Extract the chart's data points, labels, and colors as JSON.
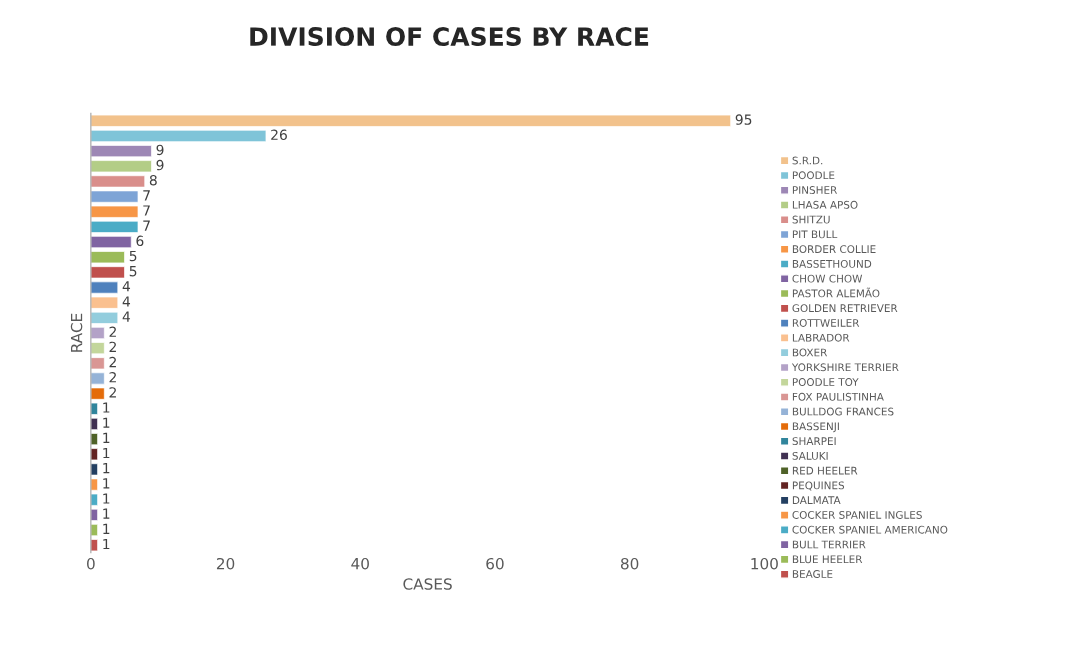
{
  "chart_data": {
    "type": "bar",
    "orientation": "horizontal",
    "title": "DIVISION OF CASES BY RACE",
    "xlabel": "CASES",
    "ylabel": "RACE",
    "categories": [
      null,
      null,
      null,
      null,
      null,
      null,
      null,
      null,
      null,
      null,
      null,
      null,
      null,
      null,
      null,
      null,
      null,
      null,
      null,
      null,
      null,
      null,
      null,
      null,
      null,
      null,
      null,
      null,
      null
    ],
    "series": [
      {
        "name": "S.R.D.",
        "color": "#f2c28c",
        "values": [
          95,
          null,
          null,
          null,
          null,
          null,
          null,
          null,
          null,
          null,
          null,
          null,
          null,
          null,
          null,
          null,
          null,
          null,
          null,
          null,
          null,
          null,
          null,
          null,
          null,
          null,
          null,
          null,
          null
        ]
      },
      {
        "name": "POODLE",
        "color": "#7fc4d8",
        "values": [
          null,
          26,
          null,
          null,
          null,
          null,
          null,
          null,
          null,
          null,
          null,
          null,
          null,
          null,
          null,
          null,
          null,
          null,
          null,
          null,
          null,
          null,
          null,
          null,
          null,
          null,
          null,
          null,
          null
        ]
      },
      {
        "name": "PINSHER",
        "color": "#9d87b5",
        "values": [
          null,
          null,
          9,
          null,
          null,
          null,
          null,
          null,
          null,
          null,
          null,
          null,
          null,
          null,
          null,
          null,
          null,
          null,
          null,
          null,
          null,
          null,
          null,
          null,
          null,
          null,
          null,
          null,
          null
        ]
      },
      {
        "name": "LHASA APSO",
        "color": "#b3cd87",
        "values": [
          null,
          null,
          null,
          9,
          null,
          null,
          null,
          null,
          null,
          null,
          null,
          null,
          null,
          null,
          null,
          null,
          null,
          null,
          null,
          null,
          null,
          null,
          null,
          null,
          null,
          null,
          null,
          null,
          null
        ]
      },
      {
        "name": "SHITZU",
        "color": "#d98e8b",
        "values": [
          null,
          null,
          null,
          null,
          8,
          null,
          null,
          null,
          null,
          null,
          null,
          null,
          null,
          null,
          null,
          null,
          null,
          null,
          null,
          null,
          null,
          null,
          null,
          null,
          null,
          null,
          null,
          null,
          null
        ]
      },
      {
        "name": "PIT BULL",
        "color": "#7ea4d6",
        "values": [
          null,
          null,
          null,
          null,
          null,
          7,
          null,
          null,
          null,
          null,
          null,
          null,
          null,
          null,
          null,
          null,
          null,
          null,
          null,
          null,
          null,
          null,
          null,
          null,
          null,
          null,
          null,
          null,
          null
        ]
      },
      {
        "name": "BORDER COLLIE",
        "color": "#f79646",
        "values": [
          null,
          null,
          null,
          null,
          null,
          null,
          7,
          null,
          null,
          null,
          null,
          null,
          null,
          null,
          null,
          null,
          null,
          null,
          null,
          null,
          null,
          null,
          null,
          null,
          null,
          null,
          null,
          null,
          null
        ]
      },
      {
        "name": "BASSETHOUND",
        "color": "#4bacc6",
        "values": [
          null,
          null,
          null,
          null,
          null,
          null,
          null,
          7,
          null,
          null,
          null,
          null,
          null,
          null,
          null,
          null,
          null,
          null,
          null,
          null,
          null,
          null,
          null,
          null,
          null,
          null,
          null,
          null,
          null
        ]
      },
      {
        "name": "CHOW CHOW",
        "color": "#8064a2",
        "values": [
          null,
          null,
          null,
          null,
          null,
          null,
          null,
          null,
          6,
          null,
          null,
          null,
          null,
          null,
          null,
          null,
          null,
          null,
          null,
          null,
          null,
          null,
          null,
          null,
          null,
          null,
          null,
          null,
          null
        ]
      },
      {
        "name": "PASTOR ALEMÃO",
        "color": "#9bbb59",
        "values": [
          null,
          null,
          null,
          null,
          null,
          null,
          null,
          null,
          null,
          5,
          null,
          null,
          null,
          null,
          null,
          null,
          null,
          null,
          null,
          null,
          null,
          null,
          null,
          null,
          null,
          null,
          null,
          null,
          null
        ]
      },
      {
        "name": "GOLDEN RETRIEVER",
        "color": "#c0504d",
        "values": [
          null,
          null,
          null,
          null,
          null,
          null,
          null,
          null,
          null,
          null,
          5,
          null,
          null,
          null,
          null,
          null,
          null,
          null,
          null,
          null,
          null,
          null,
          null,
          null,
          null,
          null,
          null,
          null,
          null
        ]
      },
      {
        "name": "ROTTWEILER",
        "color": "#4f81bd",
        "values": [
          null,
          null,
          null,
          null,
          null,
          null,
          null,
          null,
          null,
          null,
          null,
          4,
          null,
          null,
          null,
          null,
          null,
          null,
          null,
          null,
          null,
          null,
          null,
          null,
          null,
          null,
          null,
          null,
          null
        ]
      },
      {
        "name": "LABRADOR",
        "color": "#fac08f",
        "values": [
          null,
          null,
          null,
          null,
          null,
          null,
          null,
          null,
          null,
          null,
          null,
          null,
          4,
          null,
          null,
          null,
          null,
          null,
          null,
          null,
          null,
          null,
          null,
          null,
          null,
          null,
          null,
          null,
          null
        ]
      },
      {
        "name": "BOXER",
        "color": "#93cddd",
        "values": [
          null,
          null,
          null,
          null,
          null,
          null,
          null,
          null,
          null,
          null,
          null,
          null,
          null,
          4,
          null,
          null,
          null,
          null,
          null,
          null,
          null,
          null,
          null,
          null,
          null,
          null,
          null,
          null,
          null
        ]
      },
      {
        "name": "YORKSHIRE TERRIER",
        "color": "#b3a2c7",
        "values": [
          null,
          null,
          null,
          null,
          null,
          null,
          null,
          null,
          null,
          null,
          null,
          null,
          null,
          null,
          2,
          null,
          null,
          null,
          null,
          null,
          null,
          null,
          null,
          null,
          null,
          null,
          null,
          null,
          null
        ]
      },
      {
        "name": "POODLE TOY",
        "color": "#c3d69b",
        "values": [
          null,
          null,
          null,
          null,
          null,
          null,
          null,
          null,
          null,
          null,
          null,
          null,
          null,
          null,
          null,
          2,
          null,
          null,
          null,
          null,
          null,
          null,
          null,
          null,
          null,
          null,
          null,
          null,
          null
        ]
      },
      {
        "name": "FOX PAULISTINHA",
        "color": "#d99694",
        "values": [
          null,
          null,
          null,
          null,
          null,
          null,
          null,
          null,
          null,
          null,
          null,
          null,
          null,
          null,
          null,
          null,
          2,
          null,
          null,
          null,
          null,
          null,
          null,
          null,
          null,
          null,
          null,
          null,
          null
        ]
      },
      {
        "name": "BULLDOG FRANCES",
        "color": "#95b3d7",
        "values": [
          null,
          null,
          null,
          null,
          null,
          null,
          null,
          null,
          null,
          null,
          null,
          null,
          null,
          null,
          null,
          null,
          null,
          2,
          null,
          null,
          null,
          null,
          null,
          null,
          null,
          null,
          null,
          null,
          null
        ]
      },
      {
        "name": "BASSENJI",
        "color": "#e46c0a",
        "values": [
          null,
          null,
          null,
          null,
          null,
          null,
          null,
          null,
          null,
          null,
          null,
          null,
          null,
          null,
          null,
          null,
          null,
          null,
          2,
          null,
          null,
          null,
          null,
          null,
          null,
          null,
          null,
          null,
          null
        ]
      },
      {
        "name": "SHARPEI",
        "color": "#31859c",
        "values": [
          null,
          null,
          null,
          null,
          null,
          null,
          null,
          null,
          null,
          null,
          null,
          null,
          null,
          null,
          null,
          null,
          null,
          null,
          null,
          1,
          null,
          null,
          null,
          null,
          null,
          null,
          null,
          null,
          null
        ]
      },
      {
        "name": "SALUKI",
        "color": "#403152",
        "values": [
          null,
          null,
          null,
          null,
          null,
          null,
          null,
          null,
          null,
          null,
          null,
          null,
          null,
          null,
          null,
          null,
          null,
          null,
          null,
          null,
          1,
          null,
          null,
          null,
          null,
          null,
          null,
          null,
          null
        ]
      },
      {
        "name": "RED HEELER",
        "color": "#4f6228",
        "values": [
          null,
          null,
          null,
          null,
          null,
          null,
          null,
          null,
          null,
          null,
          null,
          null,
          null,
          null,
          null,
          null,
          null,
          null,
          null,
          null,
          null,
          1,
          null,
          null,
          null,
          null,
          null,
          null,
          null
        ]
      },
      {
        "name": "PEQUINES",
        "color": "#632423",
        "values": [
          null,
          null,
          null,
          null,
          null,
          null,
          null,
          null,
          null,
          null,
          null,
          null,
          null,
          null,
          null,
          null,
          null,
          null,
          null,
          null,
          null,
          null,
          1,
          null,
          null,
          null,
          null,
          null,
          null
        ]
      },
      {
        "name": "DALMATA",
        "color": "#244062",
        "values": [
          null,
          null,
          null,
          null,
          null,
          null,
          null,
          null,
          null,
          null,
          null,
          null,
          null,
          null,
          null,
          null,
          null,
          null,
          null,
          null,
          null,
          null,
          null,
          1,
          null,
          null,
          null,
          null,
          null
        ]
      },
      {
        "name": "COCKER SPANIEL INGLES",
        "color": "#f79646",
        "values": [
          null,
          null,
          null,
          null,
          null,
          null,
          null,
          null,
          null,
          null,
          null,
          null,
          null,
          null,
          null,
          null,
          null,
          null,
          null,
          null,
          null,
          null,
          null,
          null,
          1,
          null,
          null,
          null,
          null
        ]
      },
      {
        "name": "COCKER SPANIEL AMERICANO",
        "color": "#4bacc6",
        "values": [
          null,
          null,
          null,
          null,
          null,
          null,
          null,
          null,
          null,
          null,
          null,
          null,
          null,
          null,
          null,
          null,
          null,
          null,
          null,
          null,
          null,
          null,
          null,
          null,
          null,
          1,
          null,
          null,
          null
        ]
      },
      {
        "name": "BULL TERRIER",
        "color": "#8064a2",
        "values": [
          null,
          null,
          null,
          null,
          null,
          null,
          null,
          null,
          null,
          null,
          null,
          null,
          null,
          null,
          null,
          null,
          null,
          null,
          null,
          null,
          null,
          null,
          null,
          null,
          null,
          null,
          1,
          null,
          null
        ]
      },
      {
        "name": "BLUE HEELER",
        "color": "#9bbb59",
        "values": [
          null,
          null,
          null,
          null,
          null,
          null,
          null,
          null,
          null,
          null,
          null,
          null,
          null,
          null,
          null,
          null,
          null,
          null,
          null,
          null,
          null,
          null,
          null,
          null,
          null,
          null,
          null,
          1,
          null
        ]
      },
      {
        "name": "BEAGLE",
        "color": "#c0504d",
        "values": [
          null,
          null,
          null,
          null,
          null,
          null,
          null,
          null,
          null,
          null,
          null,
          null,
          null,
          null,
          null,
          null,
          null,
          null,
          null,
          null,
          null,
          null,
          null,
          null,
          null,
          null,
          null,
          null,
          1
        ]
      }
    ],
    "xlim": [
      0,
      100
    ],
    "xticks": [
      0,
      20,
      40,
      60,
      80,
      100
    ],
    "data_labels": true,
    "legend": "right",
    "tick_labels": "x"
  }
}
